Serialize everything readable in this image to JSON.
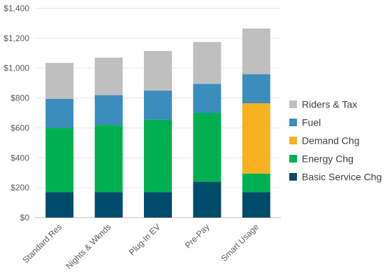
{
  "chart_data": {
    "type": "bar",
    "stacked": true,
    "categories": [
      "Standard Res",
      "Nights & Wknds",
      "Plug-In EV",
      "Pre-Pay",
      "Smart Usage"
    ],
    "series": [
      {
        "name": "Basic Service Chg",
        "color": "#004B6B",
        "values": [
          170,
          170,
          170,
          240,
          170
        ]
      },
      {
        "name": "Energy Chg",
        "color": "#00B050",
        "values": [
          430,
          450,
          485,
          460,
          125
        ]
      },
      {
        "name": "Demand Chg",
        "color": "#F5B120",
        "values": [
          0,
          0,
          0,
          0,
          470
        ]
      },
      {
        "name": "Fuel",
        "color": "#3A8DBD",
        "values": [
          195,
          200,
          195,
          195,
          195
        ]
      },
      {
        "name": "Riders & Tax",
        "color": "#BFBFBF",
        "values": [
          240,
          250,
          265,
          280,
          305
        ]
      }
    ],
    "ylim": [
      0,
      1400
    ],
    "yticks": [
      "$0",
      "$200",
      "$400",
      "$600",
      "$800",
      "$1,000",
      "$1,200",
      "$1,400"
    ],
    "ytick_values": [
      0,
      200,
      400,
      600,
      800,
      1000,
      1200,
      1400
    ],
    "grid": true,
    "legend_position": "right",
    "legend_order": [
      "Riders & Tax",
      "Fuel",
      "Demand Chg",
      "Energy Chg",
      "Basic Service Chg"
    ],
    "title": "",
    "xlabel": "",
    "ylabel": ""
  }
}
